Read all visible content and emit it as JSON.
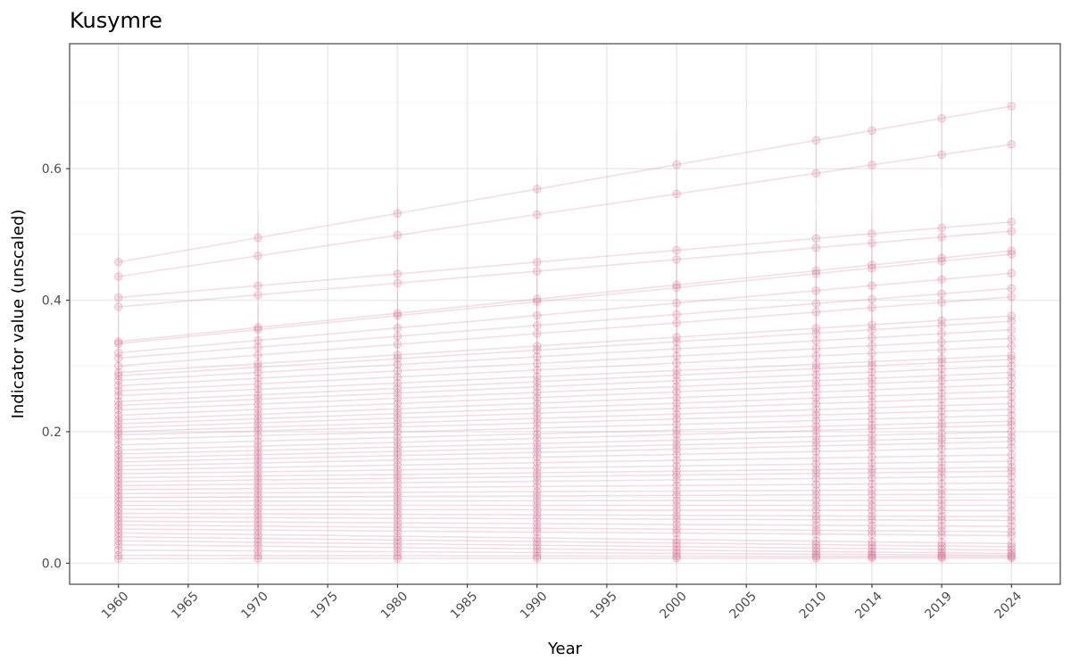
{
  "chart_data": {
    "type": "line",
    "title": "Kusymre",
    "xlabel": "Year",
    "ylabel": "Indicator value (unscaled)",
    "x_ticks": [
      1960,
      1965,
      1970,
      1975,
      1980,
      1985,
      1990,
      1995,
      2000,
      2005,
      2010,
      2014,
      2019,
      2024
    ],
    "y_ticks": [
      0.0,
      0.2,
      0.4,
      0.6
    ],
    "y_tick_labels": [
      "0.0",
      "0.2",
      "0.4",
      "0.6"
    ],
    "xlim": [
      1956.5,
      2027.5
    ],
    "ylim": [
      -0.032,
      0.79
    ],
    "x": [
      1960,
      1970,
      1980,
      1990,
      2000,
      2010,
      2014,
      2019,
      2024
    ],
    "grid": true,
    "legend": "none",
    "color": "#d6799b",
    "series_start_1960": [
      0.458,
      0.436,
      0.404,
      0.39,
      0.337,
      0.334,
      0.32,
      0.312,
      0.3,
      0.29,
      0.285,
      0.278,
      0.27,
      0.262,
      0.255,
      0.246,
      0.24,
      0.233,
      0.225,
      0.218,
      0.212,
      0.206,
      0.2,
      0.195,
      0.188,
      0.18,
      0.172,
      0.166,
      0.16,
      0.154,
      0.148,
      0.142,
      0.136,
      0.13,
      0.124,
      0.118,
      0.112,
      0.106,
      0.1,
      0.094,
      0.088,
      0.082,
      0.076,
      0.07,
      0.064,
      0.058,
      0.052,
      0.046,
      0.04,
      0.034,
      0.028,
      0.02,
      0.012,
      0.007
    ],
    "series_end_2024": [
      0.695,
      0.637,
      0.519,
      0.505,
      0.475,
      0.47,
      0.441,
      0.418,
      0.405,
      0.376,
      0.368,
      0.355,
      0.342,
      0.33,
      0.316,
      0.31,
      0.3,
      0.29,
      0.282,
      0.272,
      0.262,
      0.253,
      0.243,
      0.234,
      0.225,
      0.216,
      0.21,
      0.2,
      0.192,
      0.185,
      0.176,
      0.165,
      0.155,
      0.146,
      0.14,
      0.132,
      0.122,
      0.112,
      0.105,
      0.096,
      0.088,
      0.08,
      0.071,
      0.065,
      0.056,
      0.048,
      0.042,
      0.03,
      0.025,
      0.02,
      0.015,
      0.012,
      0.01,
      0.008
    ]
  }
}
